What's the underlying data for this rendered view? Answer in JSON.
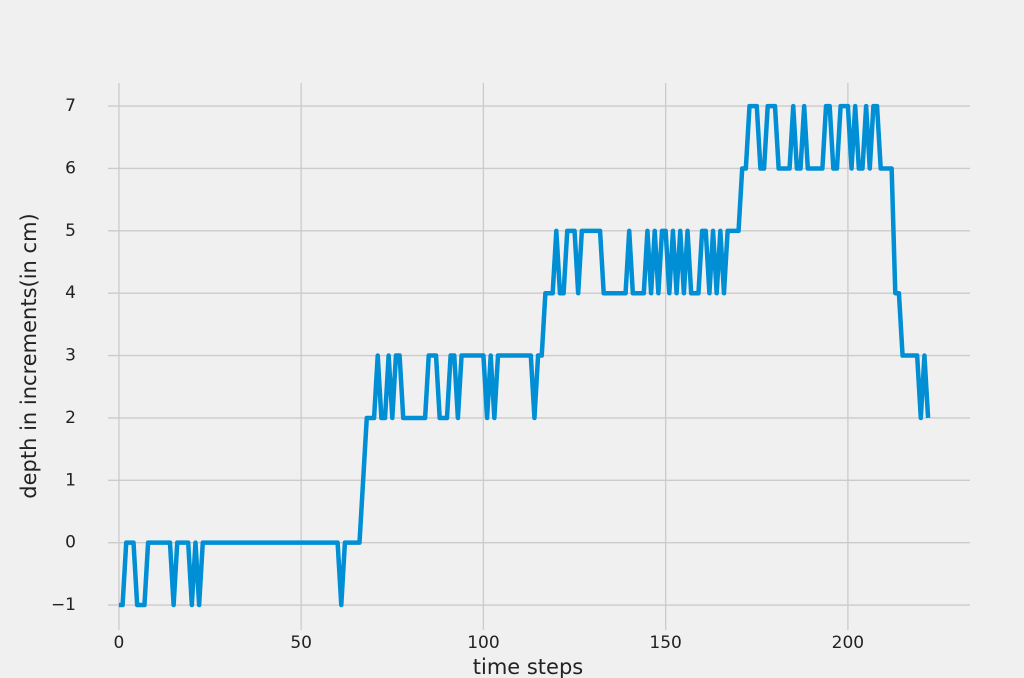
{
  "chart_data": {
    "type": "line",
    "xlabel": "time steps",
    "ylabel": "depth in increments(in cm)",
    "x": [
      0,
      1,
      2,
      3,
      4,
      5,
      6,
      7,
      8,
      9,
      10,
      11,
      12,
      13,
      14,
      15,
      16,
      17,
      18,
      19,
      20,
      21,
      22,
      23,
      24,
      25,
      26,
      27,
      28,
      29,
      30,
      31,
      32,
      33,
      34,
      35,
      36,
      37,
      38,
      39,
      40,
      41,
      42,
      43,
      44,
      45,
      46,
      47,
      48,
      49,
      50,
      51,
      52,
      53,
      54,
      55,
      56,
      57,
      58,
      59,
      60,
      61,
      62,
      63,
      64,
      65,
      66,
      67,
      68,
      69,
      70,
      71,
      72,
      73,
      74,
      75,
      76,
      77,
      78,
      79,
      80,
      81,
      82,
      83,
      84,
      85,
      86,
      87,
      88,
      89,
      90,
      91,
      92,
      93,
      94,
      95,
      96,
      97,
      98,
      99,
      100,
      101,
      102,
      103,
      104,
      105,
      106,
      107,
      108,
      109,
      110,
      111,
      112,
      113,
      114,
      115,
      116,
      117,
      118,
      119,
      120,
      121,
      122,
      123,
      124,
      125,
      126,
      127,
      128,
      129,
      130,
      131,
      132,
      133,
      134,
      135,
      136,
      137,
      138,
      139,
      140,
      141,
      142,
      143,
      144,
      145,
      146,
      147,
      148,
      149,
      150,
      151,
      152,
      153,
      154,
      155,
      156,
      157,
      158,
      159,
      160,
      161,
      162,
      163,
      164,
      165,
      166,
      167,
      168,
      169,
      170,
      171,
      172,
      173,
      174,
      175,
      176,
      177,
      178,
      179,
      180,
      181,
      182,
      183,
      184,
      185,
      186,
      187,
      188,
      189,
      190,
      191,
      192,
      193,
      194,
      195,
      196,
      197,
      198,
      199,
      200,
      201,
      202,
      203,
      204,
      205,
      206,
      207,
      208,
      209,
      210,
      211,
      212,
      213,
      214,
      215,
      216,
      217,
      218,
      219,
      220,
      221,
      222
    ],
    "series": [
      {
        "color": "#008fd5",
        "values": [
          -1,
          -1,
          0,
          0,
          0,
          -1,
          -1,
          -1,
          0,
          0,
          0,
          0,
          0,
          0,
          0,
          -1,
          0,
          0,
          0,
          0,
          -1,
          0,
          -1,
          0,
          0,
          0,
          0,
          0,
          0,
          0,
          0,
          0,
          0,
          0,
          0,
          0,
          0,
          0,
          0,
          0,
          0,
          0,
          0,
          0,
          0,
          0,
          0,
          0,
          0,
          0,
          0,
          0,
          0,
          0,
          0,
          0,
          0,
          0,
          0,
          0,
          0,
          -1,
          0,
          0,
          0,
          0,
          0,
          1,
          2,
          2,
          2,
          3,
          2,
          2,
          3,
          2,
          3,
          3,
          2,
          2,
          2,
          2,
          2,
          2,
          2,
          3,
          3,
          3,
          2,
          2,
          2,
          3,
          3,
          2,
          3,
          3,
          3,
          3,
          3,
          3,
          3,
          2,
          3,
          2,
          3,
          3,
          3,
          3,
          3,
          3,
          3,
          3,
          3,
          3,
          2,
          3,
          3,
          4,
          4,
          4,
          5,
          4,
          4,
          5,
          5,
          5,
          4,
          5,
          5,
          5,
          5,
          5,
          5,
          4,
          4,
          4,
          4,
          4,
          4,
          4,
          5,
          4,
          4,
          4,
          4,
          5,
          4,
          5,
          4,
          5,
          5,
          4,
          5,
          4,
          5,
          4,
          5,
          4,
          4,
          4,
          5,
          5,
          4,
          5,
          4,
          5,
          4,
          5,
          5,
          5,
          5,
          6,
          6,
          7,
          7,
          7,
          6,
          6,
          7,
          7,
          7,
          6,
          6,
          6,
          6,
          7,
          6,
          6,
          7,
          6,
          6,
          6,
          6,
          6,
          7,
          7,
          6,
          6,
          7,
          7,
          7,
          6,
          7,
          6,
          6,
          7,
          6,
          7,
          7,
          6,
          6,
          6,
          6,
          4,
          4,
          3,
          3,
          3,
          3,
          3,
          2,
          3,
          2
        ]
      }
    ],
    "xlim": [
      -3,
      233.5
    ],
    "ylim": [
      -1.4,
      7.37
    ],
    "xticks": [
      0,
      50,
      100,
      150,
      200
    ],
    "yticks": [
      {
        "value": -1,
        "label": "−1"
      },
      0,
      1,
      2,
      3,
      4,
      5,
      6,
      7
    ],
    "grid": true
  }
}
